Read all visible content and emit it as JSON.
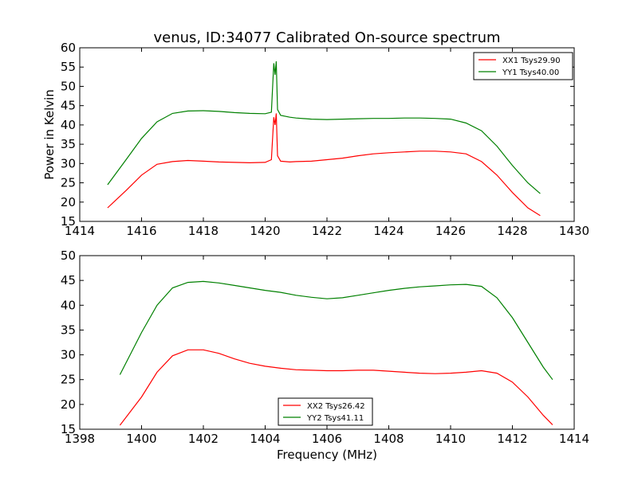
{
  "title": "venus, ID:34077 Calibrated On-source spectrum",
  "chart_data": [
    {
      "type": "line",
      "ylabel": "Power in Kelvin",
      "xlabel": "",
      "xlim": [
        1414,
        1430
      ],
      "ylim": [
        15,
        60
      ],
      "xticks": [
        "1414",
        "1416",
        "1418",
        "1420",
        "1422",
        "1424",
        "1426",
        "1428",
        "1430"
      ],
      "yticks": [
        "15",
        "20",
        "25",
        "30",
        "35",
        "40",
        "45",
        "50",
        "55",
        "60"
      ],
      "legend_position": "top-right",
      "series": [
        {
          "name": "XX1 Tsys29.90",
          "color": "#ff0000",
          "x": [
            1414.9,
            1415.5,
            1416.0,
            1416.5,
            1417.0,
            1417.5,
            1418.0,
            1418.5,
            1419.0,
            1419.5,
            1420.0,
            1420.2,
            1420.28,
            1420.32,
            1420.36,
            1420.4,
            1420.5,
            1420.8,
            1421.0,
            1421.5,
            1422.0,
            1422.5,
            1423.0,
            1423.5,
            1424.0,
            1424.5,
            1425.0,
            1425.5,
            1426.0,
            1426.5,
            1427.0,
            1427.5,
            1428.0,
            1428.5,
            1428.9
          ],
          "y": [
            18.5,
            23.0,
            27.0,
            29.8,
            30.5,
            30.8,
            30.6,
            30.4,
            30.3,
            30.2,
            30.3,
            31.0,
            42.0,
            40.0,
            43.0,
            32.0,
            30.6,
            30.4,
            30.5,
            30.6,
            31.0,
            31.4,
            32.0,
            32.5,
            32.8,
            33.0,
            33.2,
            33.2,
            33.0,
            32.5,
            30.5,
            27.0,
            22.5,
            18.5,
            16.5
          ]
        },
        {
          "name": "YY1 Tsys40.00",
          "color": "#008000",
          "x": [
            1414.9,
            1415.5,
            1416.0,
            1416.5,
            1417.0,
            1417.5,
            1418.0,
            1418.5,
            1419.0,
            1419.5,
            1420.0,
            1420.2,
            1420.28,
            1420.32,
            1420.36,
            1420.4,
            1420.5,
            1420.8,
            1421.0,
            1421.5,
            1422.0,
            1422.5,
            1423.0,
            1423.5,
            1424.0,
            1424.5,
            1425.0,
            1425.5,
            1426.0,
            1426.5,
            1427.0,
            1427.5,
            1428.0,
            1428.5,
            1428.9
          ],
          "y": [
            24.5,
            31.0,
            36.5,
            40.8,
            43.0,
            43.6,
            43.7,
            43.5,
            43.2,
            43.0,
            42.9,
            43.3,
            56.0,
            53.0,
            56.5,
            44.0,
            42.5,
            42.0,
            41.8,
            41.5,
            41.4,
            41.5,
            41.6,
            41.7,
            41.7,
            41.8,
            41.8,
            41.7,
            41.5,
            40.5,
            38.5,
            34.5,
            29.5,
            25.0,
            22.2
          ]
        }
      ]
    },
    {
      "type": "line",
      "xlabel": "Frequency (MHz)",
      "ylabel": "",
      "xlim": [
        1398,
        1414
      ],
      "ylim": [
        15,
        50
      ],
      "xticks": [
        "1398",
        "1400",
        "1402",
        "1404",
        "1406",
        "1408",
        "1410",
        "1412",
        "1414"
      ],
      "yticks": [
        "15",
        "20",
        "25",
        "30",
        "35",
        "40",
        "45",
        "50"
      ],
      "legend_position": "bottom-center",
      "series": [
        {
          "name": "XX2 Tsys26.42",
          "color": "#ff0000",
          "x": [
            1399.3,
            1400.0,
            1400.5,
            1401.0,
            1401.5,
            1402.0,
            1402.5,
            1403.0,
            1403.5,
            1404.0,
            1404.5,
            1405.0,
            1405.5,
            1406.0,
            1406.5,
            1407.0,
            1407.5,
            1408.0,
            1408.5,
            1409.0,
            1409.5,
            1410.0,
            1410.5,
            1411.0,
            1411.5,
            1412.0,
            1412.5,
            1413.0,
            1413.3
          ],
          "y": [
            15.8,
            21.5,
            26.5,
            29.8,
            31.0,
            31.0,
            30.3,
            29.2,
            28.3,
            27.7,
            27.3,
            27.0,
            26.9,
            26.8,
            26.8,
            26.9,
            26.9,
            26.7,
            26.5,
            26.3,
            26.2,
            26.3,
            26.5,
            26.8,
            26.3,
            24.5,
            21.5,
            17.8,
            15.9
          ]
        },
        {
          "name": "YY2 Tsys41.11",
          "color": "#008000",
          "x": [
            1399.3,
            1400.0,
            1400.5,
            1401.0,
            1401.5,
            1402.0,
            1402.5,
            1403.0,
            1403.5,
            1404.0,
            1404.5,
            1405.0,
            1405.5,
            1406.0,
            1406.5,
            1407.0,
            1407.5,
            1408.0,
            1408.5,
            1409.0,
            1409.5,
            1410.0,
            1410.5,
            1411.0,
            1411.5,
            1412.0,
            1412.5,
            1413.0,
            1413.3
          ],
          "y": [
            26.0,
            34.5,
            40.0,
            43.5,
            44.6,
            44.8,
            44.5,
            44.0,
            43.5,
            43.0,
            42.6,
            42.0,
            41.6,
            41.3,
            41.5,
            42.0,
            42.5,
            43.0,
            43.4,
            43.7,
            43.9,
            44.1,
            44.2,
            43.8,
            41.5,
            37.5,
            32.5,
            27.5,
            25.0
          ]
        }
      ]
    }
  ]
}
